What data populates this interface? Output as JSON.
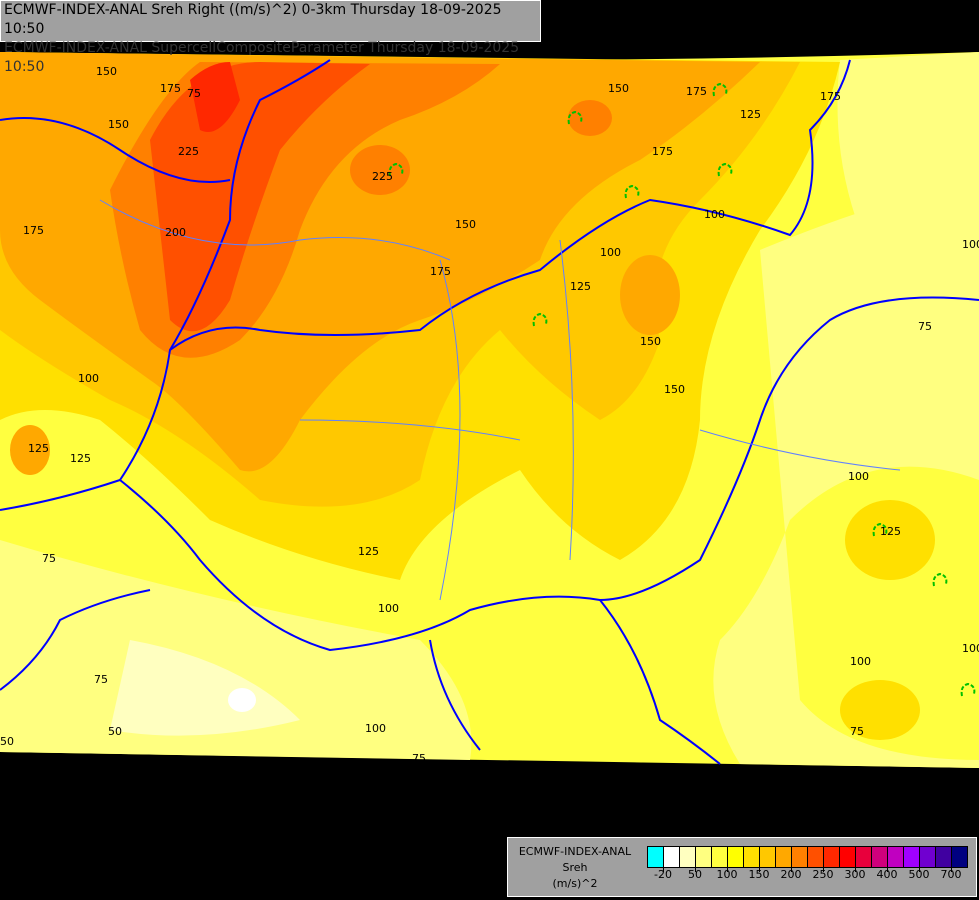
{
  "header": {
    "title_line1": "ECMWF-INDEX-ANAL Sreh Right ((m/s)^2) 0-3km Thursday 18-09-2025 10:50",
    "title_line2": "ECMWF-INDEX-ANAL SupercellCompositeParameter Thursday 18-09-2025 10:50"
  },
  "legend": {
    "model": "ECMWF-INDEX-ANAL",
    "variable": "Sreh",
    "unit": "(m/s)^2",
    "colors": [
      "#00ffff",
      "#ffffff",
      "#ffffc0",
      "#ffff80",
      "#ffff40",
      "#ffff00",
      "#ffe000",
      "#ffc800",
      "#ffa800",
      "#ff8000",
      "#ff5000",
      "#ff2800",
      "#ff0000",
      "#e8003c",
      "#d0007c",
      "#c000c0",
      "#a000ff",
      "#7000d0",
      "#4000a0",
      "#000080"
    ],
    "ticks": [
      "-20",
      "50",
      "100",
      "150",
      "200",
      "250",
      "300",
      "400",
      "500",
      "700"
    ]
  },
  "map": {
    "field_colors": {
      "c75": "#ffff80",
      "c100": "#ffff40",
      "c125": "#ffe000",
      "c150": "#ffc800",
      "c175": "#ffa800",
      "c200": "#ff8000",
      "c225": "#ff5000",
      "c250": "#ff2800",
      "low": "#ffffc0",
      "min": "#ffffff"
    },
    "border_color": "#0000ff",
    "river_color": "#6080ff",
    "scp_contour_color": "#00c000",
    "contour_labels": [
      "150",
      "175",
      "150",
      "225",
      "200",
      "175",
      "225",
      "175",
      "150",
      "175",
      "150",
      "100",
      "175",
      "125",
      "100",
      "125",
      "175",
      "150",
      "150",
      "75",
      "100",
      "100",
      "125",
      "125",
      "125",
      "100",
      "75",
      "100",
      "75",
      "75",
      "50",
      "100",
      "50",
      "75",
      "125",
      "100",
      "100",
      "75"
    ]
  }
}
